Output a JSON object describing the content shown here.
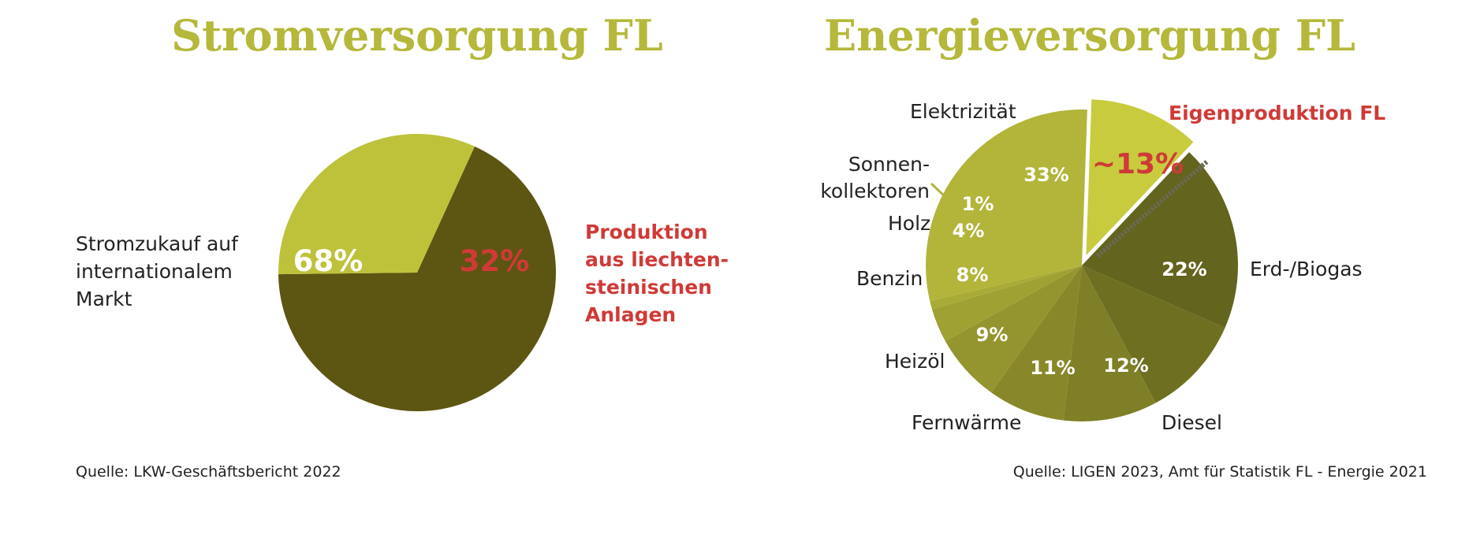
{
  "colors": {
    "title": "#b5b83a",
    "highlight": "#cf3a37",
    "dark_olive": "#5d5512",
    "bright_green": "#bec23a",
    "label_white": "#ffffff",
    "text": "#222222"
  },
  "chart_data": [
    {
      "type": "pie",
      "title": "Stromversorgung FL",
      "slices": [
        {
          "label": "Stromzukauf auf internationalem Markt",
          "label_lines": [
            "Stromzukauf auf",
            "internationalem",
            "Markt"
          ],
          "value": 68,
          "value_label": "68%",
          "color": "#5d5512",
          "highlight": false
        },
        {
          "label": "Produktion aus liechtensteinischen Anlagen",
          "label_lines": [
            "Produktion",
            "aus liechten-",
            "steinischen",
            "Anlagen"
          ],
          "value": 32,
          "value_label": "32%",
          "color": "#bec23a",
          "highlight": true
        }
      ],
      "source": "Quelle: LKW-Geschäftsbericht 2022"
    },
    {
      "type": "pie",
      "title": "Energieversorgung FL",
      "annotation": "Eigenproduktion FL",
      "slices": [
        {
          "label": "Eigenproduktion",
          "value": 13,
          "value_label": "~13%",
          "color": "#c8cb3e",
          "highlight": true,
          "exploded": true
        },
        {
          "label": "Erd-/Biogas",
          "value": 22,
          "value_label": "22%",
          "color": "#63641d"
        },
        {
          "label": "Diesel",
          "value": 12,
          "value_label": "12%",
          "color": "#6f6f22"
        },
        {
          "label": "Fernwärme",
          "value": 11,
          "value_label": "11%",
          "color": "#7e7f27"
        },
        {
          "label": "Heizöl",
          "value": 9,
          "value_label": "9%",
          "color": "#88882a"
        },
        {
          "label": "Benzin",
          "value": 8,
          "value_label": "8%",
          "color": "#94952e"
        },
        {
          "label": "Holz",
          "value": 4,
          "value_label": "4%",
          "color": "#9fa133"
        },
        {
          "label": "Sonnenkollektoren",
          "label_lines": [
            "Sonnen-",
            "kollektoren"
          ],
          "value": 1,
          "value_label": "1%",
          "color": "#a8ab36"
        },
        {
          "label": "Elektrizität",
          "value": 33,
          "value_label": "33%",
          "color": "#b2b53a"
        }
      ],
      "source": "Quelle: LIGEN 2023, Amt für Statistik FL - Energie 2021"
    }
  ]
}
